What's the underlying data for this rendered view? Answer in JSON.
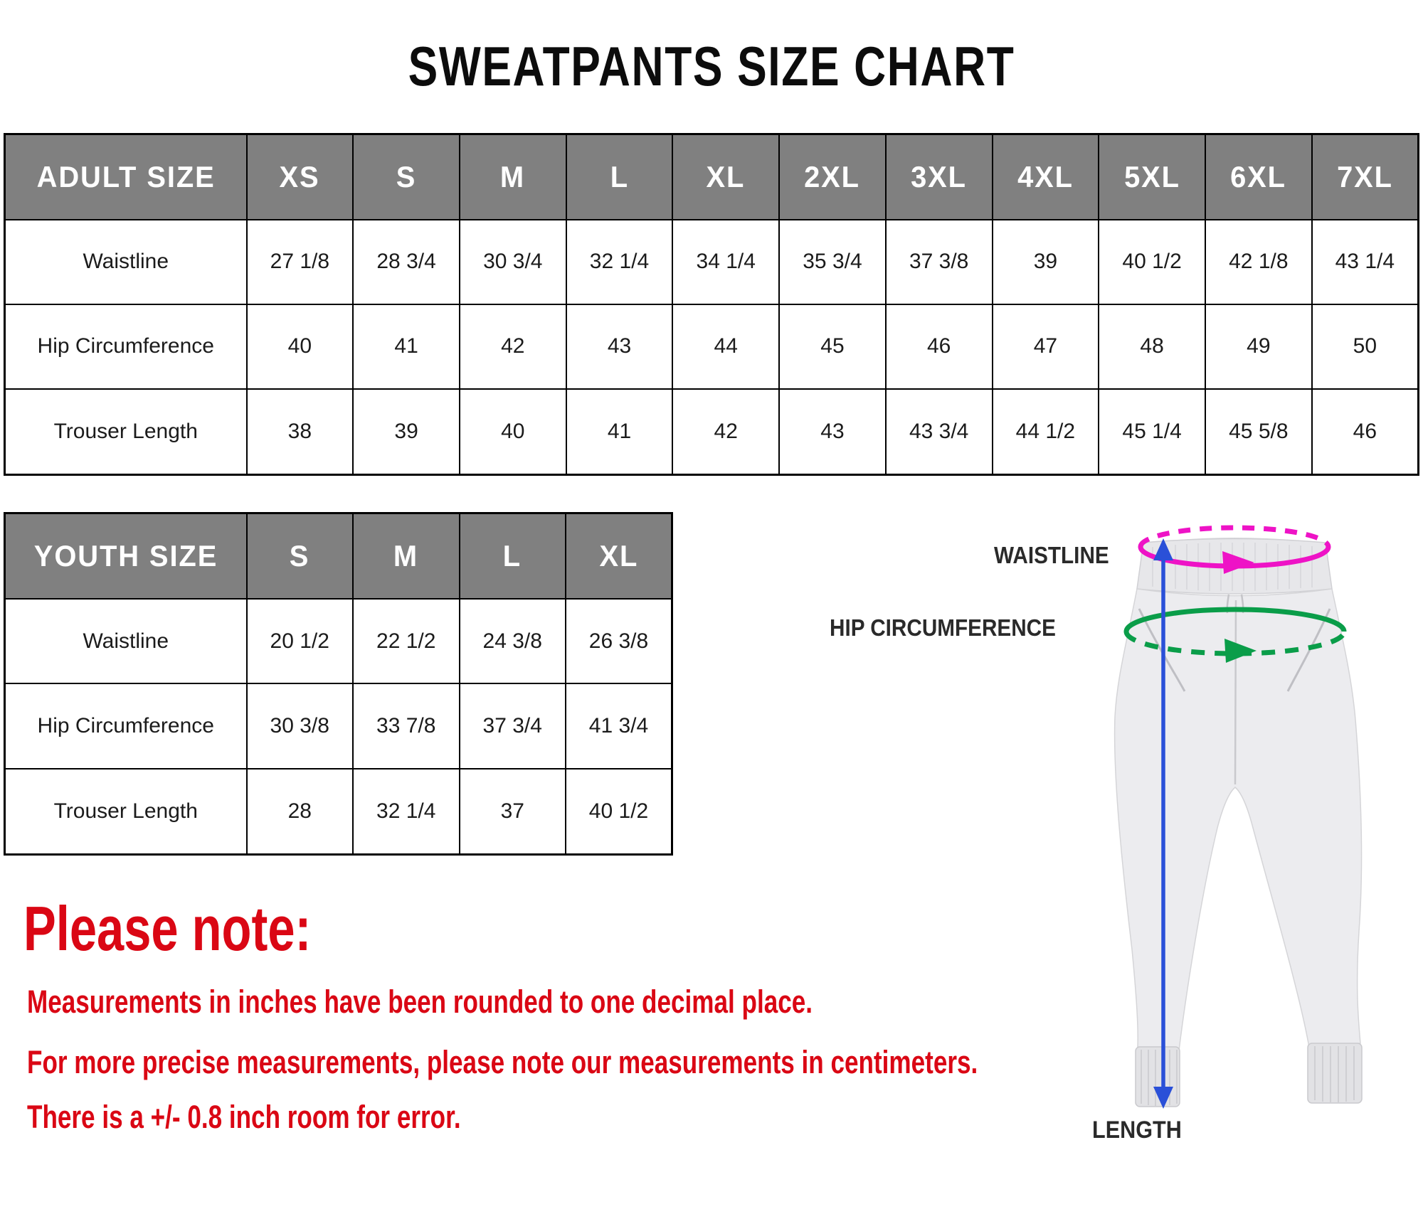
{
  "title": "SWEATPANTS SIZE CHART",
  "adult_table": {
    "header": [
      "ADULT SIZE",
      "XS",
      "S",
      "M",
      "L",
      "XL",
      "2XL",
      "3XL",
      "4XL",
      "5XL",
      "6XL",
      "7XL"
    ],
    "rows": [
      {
        "label": "Waistline",
        "values": [
          "27 1/8",
          "28 3/4",
          "30 3/4",
          "32 1/4",
          "34 1/4",
          "35 3/4",
          "37 3/8",
          "39",
          "40 1/2",
          "42 1/8",
          "43 1/4"
        ]
      },
      {
        "label": "Hip Circumference",
        "values": [
          "40",
          "41",
          "42",
          "43",
          "44",
          "45",
          "46",
          "47",
          "48",
          "49",
          "50"
        ]
      },
      {
        "label": "Trouser Length",
        "values": [
          "38",
          "39",
          "40",
          "41",
          "42",
          "43",
          "43 3/4",
          "44 1/2",
          "45 1/4",
          "45 5/8",
          "46"
        ]
      }
    ]
  },
  "youth_table": {
    "header": [
      "YOUTH SIZE",
      "S",
      "M",
      "L",
      "XL"
    ],
    "rows": [
      {
        "label": "Waistline",
        "values": [
          "20 1/2",
          "22 1/2",
          "24 3/8",
          "26 3/8"
        ]
      },
      {
        "label": "Hip Circumference",
        "values": [
          "30 3/8",
          "33 7/8",
          "37 3/4",
          "41 3/4"
        ]
      },
      {
        "label": "Trouser Length",
        "values": [
          "28",
          "32 1/4",
          "37",
          "40 1/2"
        ]
      }
    ]
  },
  "notes": {
    "heading": "Please note:",
    "lines": [
      "Measurements in inches have been rounded to one decimal place.",
      "For more precise measurements, please note our measurements in centimeters.",
      "There is a +/- 0.8 inch room for error."
    ]
  },
  "diagram": {
    "waistline_label": "WAISTLINE",
    "hip_label": "HIP CIRCUMFERENCE",
    "length_label": "LENGTH"
  },
  "colors": {
    "note_red": "#da0714",
    "header_gray": "#808080",
    "waistline_magenta": "#ee13c6",
    "hip_green": "#0a9d49",
    "length_blue": "#2a50d8",
    "table_border": "#000000"
  },
  "chart_data": [
    {
      "type": "table",
      "title": "Adult sweatpants sizes (inches)",
      "columns": [
        "ADULT SIZE",
        "XS",
        "S",
        "M",
        "L",
        "XL",
        "2XL",
        "3XL",
        "4XL",
        "5XL",
        "6XL",
        "7XL"
      ],
      "rows": [
        [
          "Waistline",
          "27 1/8",
          "28 3/4",
          "30 3/4",
          "32 1/4",
          "34 1/4",
          "35 3/4",
          "37 3/8",
          "39",
          "40 1/2",
          "42 1/8",
          "43 1/4"
        ],
        [
          "Hip Circumference",
          "40",
          "41",
          "42",
          "43",
          "44",
          "45",
          "46",
          "47",
          "48",
          "49",
          "50"
        ],
        [
          "Trouser Length",
          "38",
          "39",
          "40",
          "41",
          "42",
          "43",
          "43 3/4",
          "44 1/2",
          "45 1/4",
          "45 5/8",
          "46"
        ]
      ]
    },
    {
      "type": "table",
      "title": "Youth sweatpants sizes (inches)",
      "columns": [
        "YOUTH SIZE",
        "S",
        "M",
        "L",
        "XL"
      ],
      "rows": [
        [
          "Waistline",
          "20 1/2",
          "22 1/2",
          "24 3/8",
          "26 3/8"
        ],
        [
          "Hip Circumference",
          "30 3/8",
          "33 7/8",
          "37 3/4",
          "41 3/4"
        ],
        [
          "Trouser Length",
          "28",
          "32 1/4",
          "37",
          "40 1/2"
        ]
      ]
    }
  ]
}
